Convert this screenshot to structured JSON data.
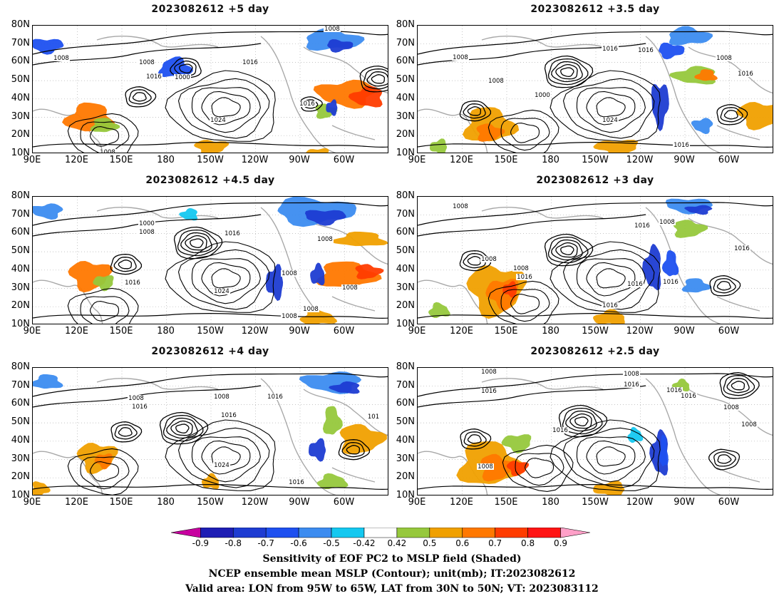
{
  "panels": [
    {
      "id": "p1",
      "title": "2023082612  +5  day",
      "isobar_labels": [
        "1008",
        "1016",
        "1008",
        "1016",
        "1000",
        "1016",
        "1024",
        "1008",
        "1008"
      ]
    },
    {
      "id": "p2",
      "title": "2023082612  +3.5  day",
      "isobar_labels": [
        "1008",
        "1016",
        "1016",
        "1008",
        "1016",
        "1000",
        "1024",
        "1016",
        "1008"
      ]
    },
    {
      "id": "p3",
      "title": "2023082612  +4.5  day",
      "isobar_labels": [
        "1000",
        "1008",
        "1016",
        "1008",
        "1016",
        "1024",
        "1008",
        "1008",
        "1008",
        "1008"
      ]
    },
    {
      "id": "p4",
      "title": "2023082612  +3  day",
      "isobar_labels": [
        "1008",
        "1016",
        "1008",
        "1016",
        "1008",
        "1008",
        "1016",
        "1016",
        "1016",
        "1016"
      ]
    },
    {
      "id": "p5",
      "title": "2023082612  +4  day",
      "isobar_labels": [
        "1008",
        "1016",
        "1008",
        "1016",
        "1016",
        "1024",
        "1016",
        "101"
      ]
    },
    {
      "id": "p6",
      "title": "2023082612  +2.5  day",
      "isobar_labels": [
        "1008",
        "1016",
        "1008",
        "1016",
        "1016",
        "1008",
        "1016",
        "1008",
        "1016",
        "1008"
      ]
    }
  ],
  "lat_ticks": [
    "80N",
    "70N",
    "60N",
    "50N",
    "40N",
    "30N",
    "20N",
    "10N"
  ],
  "lon_ticks": [
    "90E",
    "120E",
    "150E",
    "180",
    "150W",
    "120W",
    "90W",
    "60W"
  ],
  "colorbar": {
    "labels": [
      "-0.9",
      "-0.8",
      "-0.7",
      "-0.6",
      "-0.5",
      "-0.42",
      "0.42",
      "0.5",
      "0.6",
      "0.7",
      "0.8",
      "0.9"
    ],
    "colors": [
      "#c800a0",
      "#1e1eb4",
      "#1e3cd2",
      "#1e50f0",
      "#3c8cf0",
      "#14c8f0",
      "#ffffff",
      "#96c83c",
      "#f0a000",
      "#ff7800",
      "#ff3c00",
      "#ff1414",
      "#ffa0c8"
    ]
  },
  "caption": {
    "line1": "Sensitivity of EOF PC2 to MSLP field (Shaded)",
    "line2": "NCEP ensemble mean MSLP (Contour); unit(mb); IT:2023082612",
    "line3": "Valid area: LON from 95W to 65W, LAT from 30N to 50N; VT: 2023083112"
  }
}
